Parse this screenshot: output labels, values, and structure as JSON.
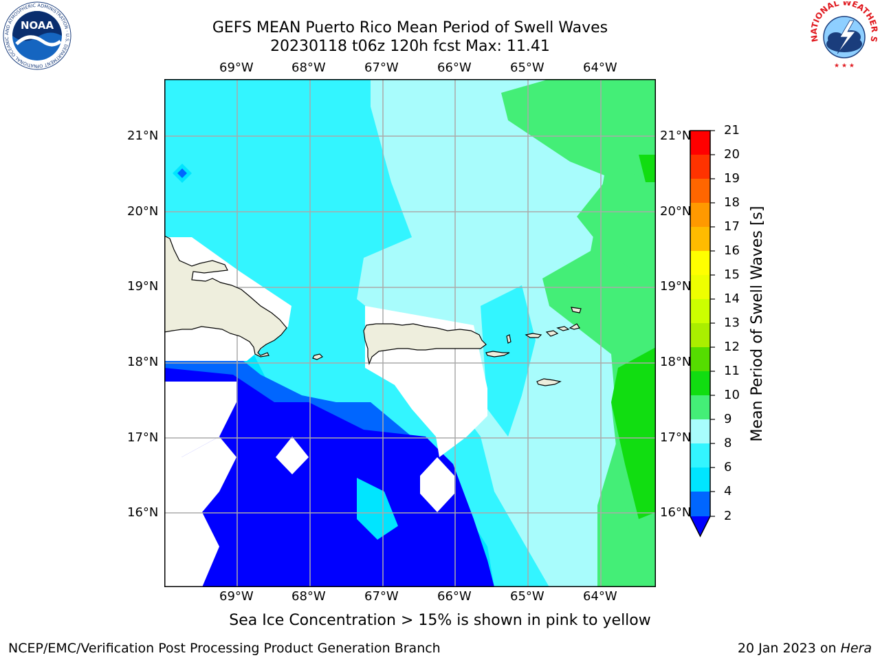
{
  "header": {
    "title_line1": "GEFS MEAN Puerto Rico Mean Period of Swell Waves",
    "title_line2": "20230118 t06z 120h fcst   Max: 11.41"
  },
  "logos": {
    "noaa_text": "NOAA",
    "nws_text": "NATIONAL WEATHER SERVICE",
    "noaa_ring_text": "NATIONAL OCEANIC AND ATMOSPHERIC ADMINISTRATION · U.S. DEPARTMENT OF COMMERCE"
  },
  "map": {
    "lon_labels": [
      "69°W",
      "68°W",
      "67°W",
      "66°W",
      "65°W",
      "64°W"
    ],
    "lat_labels": [
      "21°N",
      "20°N",
      "19°N",
      "18°N",
      "17°N",
      "16°N"
    ]
  },
  "colorbar": {
    "title": "Mean Period of Swell Waves [s]",
    "ticks": [
      "21",
      "20",
      "19",
      "18",
      "17",
      "16",
      "15",
      "14",
      "13",
      "12",
      "11",
      "10",
      "9",
      "8",
      "6",
      "4",
      "2"
    ],
    "colors": {
      "c2_4": "#0066ff",
      "c4_6": "#00e5ff",
      "c6_8": "#33f5ff",
      "c8_9": "#a8fcfc",
      "c9_10": "#44ee77",
      "c10_11": "#11dd11",
      "c11_12": "#55dd00",
      "c12_13": "#aaee00",
      "c13_14": "#ccff00",
      "c14_15": "#eeff00",
      "c15_16": "#ffff00",
      "c16_17": "#ffbb00",
      "c17_18": "#ff9900",
      "c18_19": "#ff6600",
      "c19_20": "#ff3300",
      "c20_21": "#ff0000",
      "below": "#0000ff",
      "land": "#eeeedd"
    }
  },
  "notes": {
    "sea_ice": "Sea Ice Concentration > 15% is shown in pink to yellow"
  },
  "footer": {
    "left": "NCEP/EMC/Verification Post Processing Product Generation Branch",
    "right_date": "20 Jan 2023 on ",
    "right_host": "Hera"
  }
}
